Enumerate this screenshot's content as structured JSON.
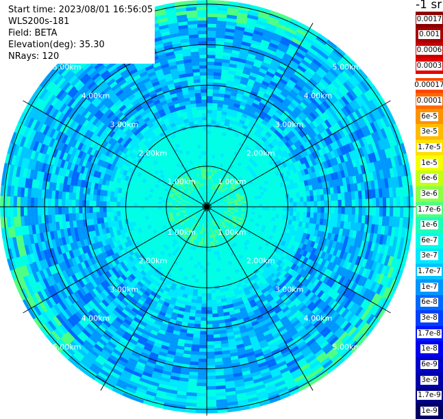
{
  "header": {
    "start_time": "Start time: 2023/08/01 16:56:05",
    "instrument": "WLS200s-181",
    "field": "Field: BETA",
    "elevation": "Elevation(deg): 35.30",
    "nrays": "NRays: 120"
  },
  "colorbar": {
    "unit": "-1 sr",
    "top_labels": [
      "0.0017",
      "0.001",
      "0.0006",
      "0.0003"
    ],
    "top_colors": [
      "#8b0000",
      "#a80000",
      "#c80000",
      "#e60000"
    ],
    "labels": [
      "0.00017",
      "0.0001",
      "6e-5",
      "3e-5",
      "1.7e-5",
      "1e-5",
      "6e-6",
      "3e-6",
      "1.7e-6",
      "1e-6",
      "6e-7",
      "3e-7",
      "1.7e-7",
      "1e-7",
      "6e-8",
      "3e-8",
      "1.7e-8",
      "1e-8",
      "6e-9",
      "3e-9",
      "1.7e-9",
      "1e-9"
    ],
    "colors": [
      "#ff4400",
      "#ff6a00",
      "#ff9200",
      "#ffbb00",
      "#ffe000",
      "#f6ff00",
      "#c4ff14",
      "#8cff48",
      "#50ff82",
      "#20ffb8",
      "#00ffe6",
      "#00e8ff",
      "#00c4ff",
      "#0096ff",
      "#0068ff",
      "#0040ff",
      "#0018ff",
      "#0000f0",
      "#0000cc",
      "#0000a8",
      "#000085",
      "#000062"
    ]
  },
  "ppi": {
    "range_rings_km": [
      1,
      2,
      3,
      4,
      5
    ],
    "ring_labels": [
      "1.00km",
      "2.00km",
      "3.00km",
      "4.00km",
      "5.00km"
    ],
    "max_range_km": 5.1,
    "azimuth_spokes_deg": [
      0,
      30,
      60,
      90,
      120,
      150,
      180,
      210,
      240,
      270,
      300,
      330
    ],
    "palette": {
      "cyan": "#00ffe6",
      "light_cyan": "#00e8ff",
      "sky_blue": "#00c4ff",
      "blue": "#0096ff",
      "deep_blue": "#0068ff",
      "green_cyan": "#50ff82",
      "green": "#8cff48"
    }
  }
}
